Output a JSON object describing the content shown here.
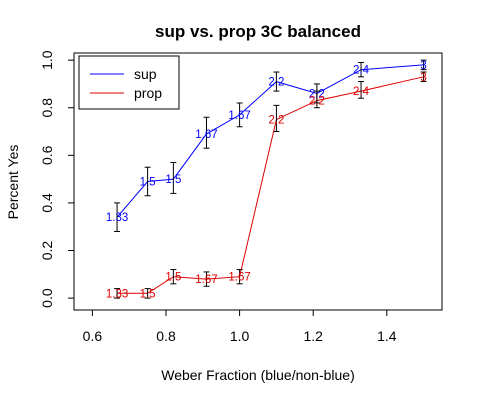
{
  "chart_data": {
    "type": "line",
    "title": "sup vs. prop 3C balanced",
    "xlabel": "Weber Fraction (blue/non-blue)",
    "ylabel": "Percent Yes",
    "xlim": [
      0.55,
      1.55
    ],
    "ylim": [
      -0.05,
      1.03
    ],
    "x_ticks": [
      "0.6",
      "0.8",
      "1.0",
      "1.2",
      "1.4"
    ],
    "y_ticks": [
      "0.0",
      "0.2",
      "0.4",
      "0.6",
      "0.8",
      "1.0"
    ],
    "legend_position": "top-left",
    "series": [
      {
        "name": "sup",
        "color": "#0000ff",
        "x": [
          0.667,
          0.75,
          0.82,
          0.91,
          1.0,
          1.1,
          1.21,
          1.33,
          1.5
        ],
        "y": [
          0.34,
          0.49,
          0.5,
          0.69,
          0.77,
          0.91,
          0.86,
          0.96,
          0.98
        ],
        "err_low": [
          0.28,
          0.43,
          0.44,
          0.63,
          0.72,
          0.87,
          0.82,
          0.93,
          0.96
        ],
        "err_high": [
          0.4,
          0.55,
          0.57,
          0.76,
          0.82,
          0.95,
          0.9,
          0.99,
          1.0
        ],
        "point_labels": [
          "1.33",
          "1.5",
          "1.5",
          "1.67",
          "1.67",
          "2.2",
          "2.2",
          "2.4",
          "3"
        ]
      },
      {
        "name": "prop",
        "color": "#dd0000",
        "x": [
          0.667,
          0.75,
          0.82,
          0.91,
          1.0,
          1.1,
          1.21,
          1.33,
          1.5
        ],
        "y": [
          0.02,
          0.02,
          0.09,
          0.08,
          0.09,
          0.75,
          0.83,
          0.87,
          0.93
        ],
        "err_low": [
          0.0,
          0.0,
          0.06,
          0.05,
          0.06,
          0.7,
          0.8,
          0.84,
          0.91
        ],
        "err_high": [
          0.04,
          0.04,
          0.12,
          0.11,
          0.12,
          0.81,
          0.87,
          0.91,
          0.95
        ],
        "point_labels": [
          "1.33",
          "1.5",
          "1.5",
          "1.67",
          "1.67",
          "2.2",
          "2.2",
          "2.4",
          "3"
        ]
      }
    ]
  }
}
